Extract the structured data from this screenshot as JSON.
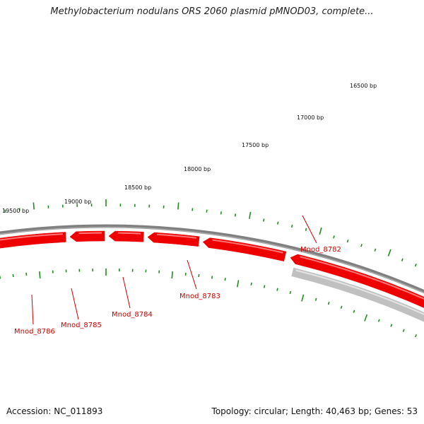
{
  "title": "Methylobacterium nodulans ORS 2060 plasmid pMNOD03, complete...",
  "footer": {
    "accession": "Accession: NC_011893",
    "summary": "Topology: circular; Length: 40,463 bp; Genes: 53"
  },
  "colors": {
    "gene": "#ee0000",
    "gene_highlight": "#ff7777",
    "pseudogene": "#c0c0c0",
    "backbone": "#808080",
    "ticks": "#228b22",
    "label": "#cc0000"
  },
  "scale_labels": [
    "16500 bp",
    "17000 bp",
    "17500 bp",
    "18000 bp",
    "18500 bp",
    "19000 bp",
    "19500 bp"
  ],
  "genes": [
    {
      "name": "Mnod_8782"
    },
    {
      "name": "Mnod_8783"
    },
    {
      "name": "Mnod_8784"
    },
    {
      "name": "Mnod_8785"
    },
    {
      "name": "Mnod_8786"
    }
  ]
}
